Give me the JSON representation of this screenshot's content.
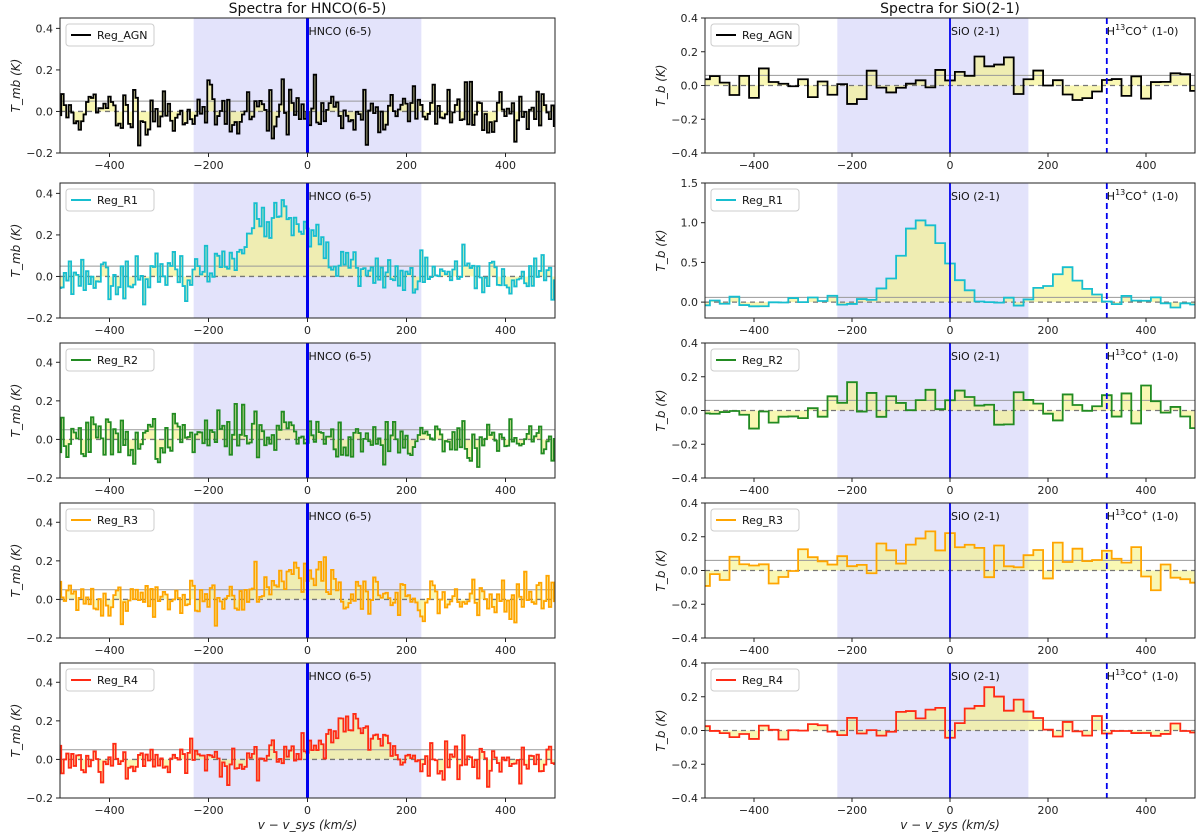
{
  "chart_data": {
    "type": "line",
    "columns": [
      {
        "title": "Spectra for HNCO(6-5)",
        "xlabel": "v − v_sys (km/s)",
        "ylabel": "T_mb (K)",
        "xlim": [
          -500,
          500
        ],
        "xticks": [
          -400,
          -200,
          0,
          200,
          400
        ],
        "tick_labels_x": [
          "−400",
          "−200",
          "0",
          "200",
          "400"
        ],
        "shade_range": [
          -230,
          230
        ],
        "line_marker": {
          "label": "HNCO (6-5)",
          "x": 0,
          "style": "solid"
        },
        "extra_marker": null,
        "reference_level": 0.05,
        "panels": [
          {
            "legend": "Reg_AGN",
            "color": "#000000",
            "ylim": [
              -0.2,
              0.45
            ],
            "yticks": [
              -0.2,
              0.0,
              0.2,
              0.4
            ],
            "tick_labels_y": [
              "−0.2",
              "0.0",
              "0.2",
              "0.4"
            ],
            "seed": 11,
            "noise": 0.065,
            "bin": 5,
            "peaks": []
          },
          {
            "legend": "Reg_R1",
            "color": "#17becf",
            "ylim": [
              -0.2,
              0.45
            ],
            "yticks": [
              -0.2,
              0.0,
              0.2,
              0.4
            ],
            "tick_labels_y": [
              "−0.2",
              "0.0",
              "0.2",
              "0.4"
            ],
            "seed": 23,
            "noise": 0.05,
            "bin": 5,
            "peaks": [
              {
                "center": -60,
                "width": 70,
                "amp": 0.28
              }
            ]
          },
          {
            "legend": "Reg_R2",
            "color": "#228b22",
            "ylim": [
              -0.2,
              0.5
            ],
            "yticks": [
              -0.2,
              0.0,
              0.2,
              0.4
            ],
            "tick_labels_y": [
              "−0.2",
              "0.0",
              "0.2",
              "0.4"
            ],
            "seed": 37,
            "noise": 0.06,
            "bin": 5,
            "peaks": [
              {
                "center": -80,
                "width": 90,
                "amp": 0.05
              }
            ]
          },
          {
            "legend": "Reg_R3",
            "color": "#ffa500",
            "ylim": [
              -0.2,
              0.5
            ],
            "yticks": [
              -0.2,
              0.0,
              0.2,
              0.4
            ],
            "tick_labels_y": [
              "−0.2",
              "0.0",
              "0.2",
              "0.4"
            ],
            "seed": 41,
            "noise": 0.055,
            "bin": 5,
            "peaks": [
              {
                "center": -20,
                "width": 60,
                "amp": 0.17
              }
            ]
          },
          {
            "legend": "Reg_R4",
            "color": "#ff2a14",
            "ylim": [
              -0.2,
              0.5
            ],
            "yticks": [
              -0.2,
              0.0,
              0.2,
              0.4
            ],
            "tick_labels_y": [
              "−0.2",
              "0.0",
              "0.2",
              "0.4"
            ],
            "seed": 53,
            "noise": 0.05,
            "bin": 5,
            "peaks": [
              {
                "center": 80,
                "width": 50,
                "amp": 0.18
              }
            ]
          }
        ]
      },
      {
        "title": "Spectra for SiO(2-1)",
        "xlabel": "v − v_sys (km/s)",
        "ylabel": "T_b (K)",
        "xlim": [
          -500,
          500
        ],
        "xticks": [
          -400,
          -200,
          0,
          200,
          400
        ],
        "tick_labels_x": [
          "−400",
          "−200",
          "0",
          "200",
          "400"
        ],
        "shade_range": [
          -230,
          160
        ],
        "line_marker": {
          "label": "SiO (2-1)",
          "x": 0,
          "style": "solid"
        },
        "extra_marker": {
          "label": "H13CO+ (1-0)",
          "label_main": "H",
          "label_sup1": "13",
          "label_mid": "CO",
          "label_sup2": "+",
          "label_end": " (1-0)",
          "x": 320,
          "style": "dashed"
        },
        "reference_level": 0.06,
        "panels": [
          {
            "legend": "Reg_AGN",
            "color": "#000000",
            "ylim": [
              -0.4,
              0.4
            ],
            "yticks": [
              -0.4,
              -0.2,
              0.0,
              0.2,
              0.4
            ],
            "tick_labels_y": [
              "−0.4",
              "−0.2",
              "0.0",
              "0.2",
              "0.4"
            ],
            "seed": 61,
            "noise": 0.06,
            "bin": 20,
            "peaks": [
              {
                "center": 60,
                "width": 60,
                "amp": 0.09
              }
            ]
          },
          {
            "legend": "Reg_R1",
            "color": "#17becf",
            "ylim": [
              -0.2,
              1.5
            ],
            "yticks": [
              0.0,
              0.5,
              1.0,
              1.5
            ],
            "tick_labels_y": [
              "0.0",
              "0.5",
              "1.0",
              "1.5"
            ],
            "seed": 67,
            "noise": 0.04,
            "bin": 20,
            "peaks": [
              {
                "center": -55,
                "width": 45,
                "amp": 1.0
              },
              {
                "center": 240,
                "width": 35,
                "amp": 0.4
              }
            ]
          },
          {
            "legend": "Reg_R2",
            "color": "#228b22",
            "ylim": [
              -0.4,
              0.4
            ],
            "yticks": [
              -0.4,
              -0.2,
              0.0,
              0.2,
              0.4
            ],
            "tick_labels_y": [
              "−0.4",
              "−0.2",
              "0.0",
              "0.2",
              "0.4"
            ],
            "seed": 71,
            "noise": 0.06,
            "bin": 20,
            "peaks": [
              {
                "center": 0,
                "width": 200,
                "amp": 0.05
              }
            ]
          },
          {
            "legend": "Reg_R3",
            "color": "#ffa500",
            "ylim": [
              -0.4,
              0.4
            ],
            "yticks": [
              -0.4,
              -0.2,
              0.0,
              0.2,
              0.4
            ],
            "tick_labels_y": [
              "−0.4",
              "−0.2",
              "0.0",
              "0.2",
              "0.4"
            ],
            "seed": 79,
            "noise": 0.06,
            "bin": 20,
            "peaks": [
              {
                "center": -40,
                "width": 90,
                "amp": 0.16
              },
              {
                "center": 250,
                "width": 60,
                "amp": 0.1
              }
            ]
          },
          {
            "legend": "Reg_R4",
            "color": "#ff2a14",
            "ylim": [
              -0.4,
              0.4
            ],
            "yticks": [
              -0.4,
              -0.2,
              0.0,
              0.2,
              0.4
            ],
            "tick_labels_y": [
              "−0.4",
              "−0.2",
              "0.0",
              "0.2",
              "0.4"
            ],
            "seed": 83,
            "noise": 0.045,
            "bin": 20,
            "peaks": [
              {
                "center": 90,
                "width": 55,
                "amp": 0.2
              }
            ]
          }
        ]
      }
    ]
  }
}
